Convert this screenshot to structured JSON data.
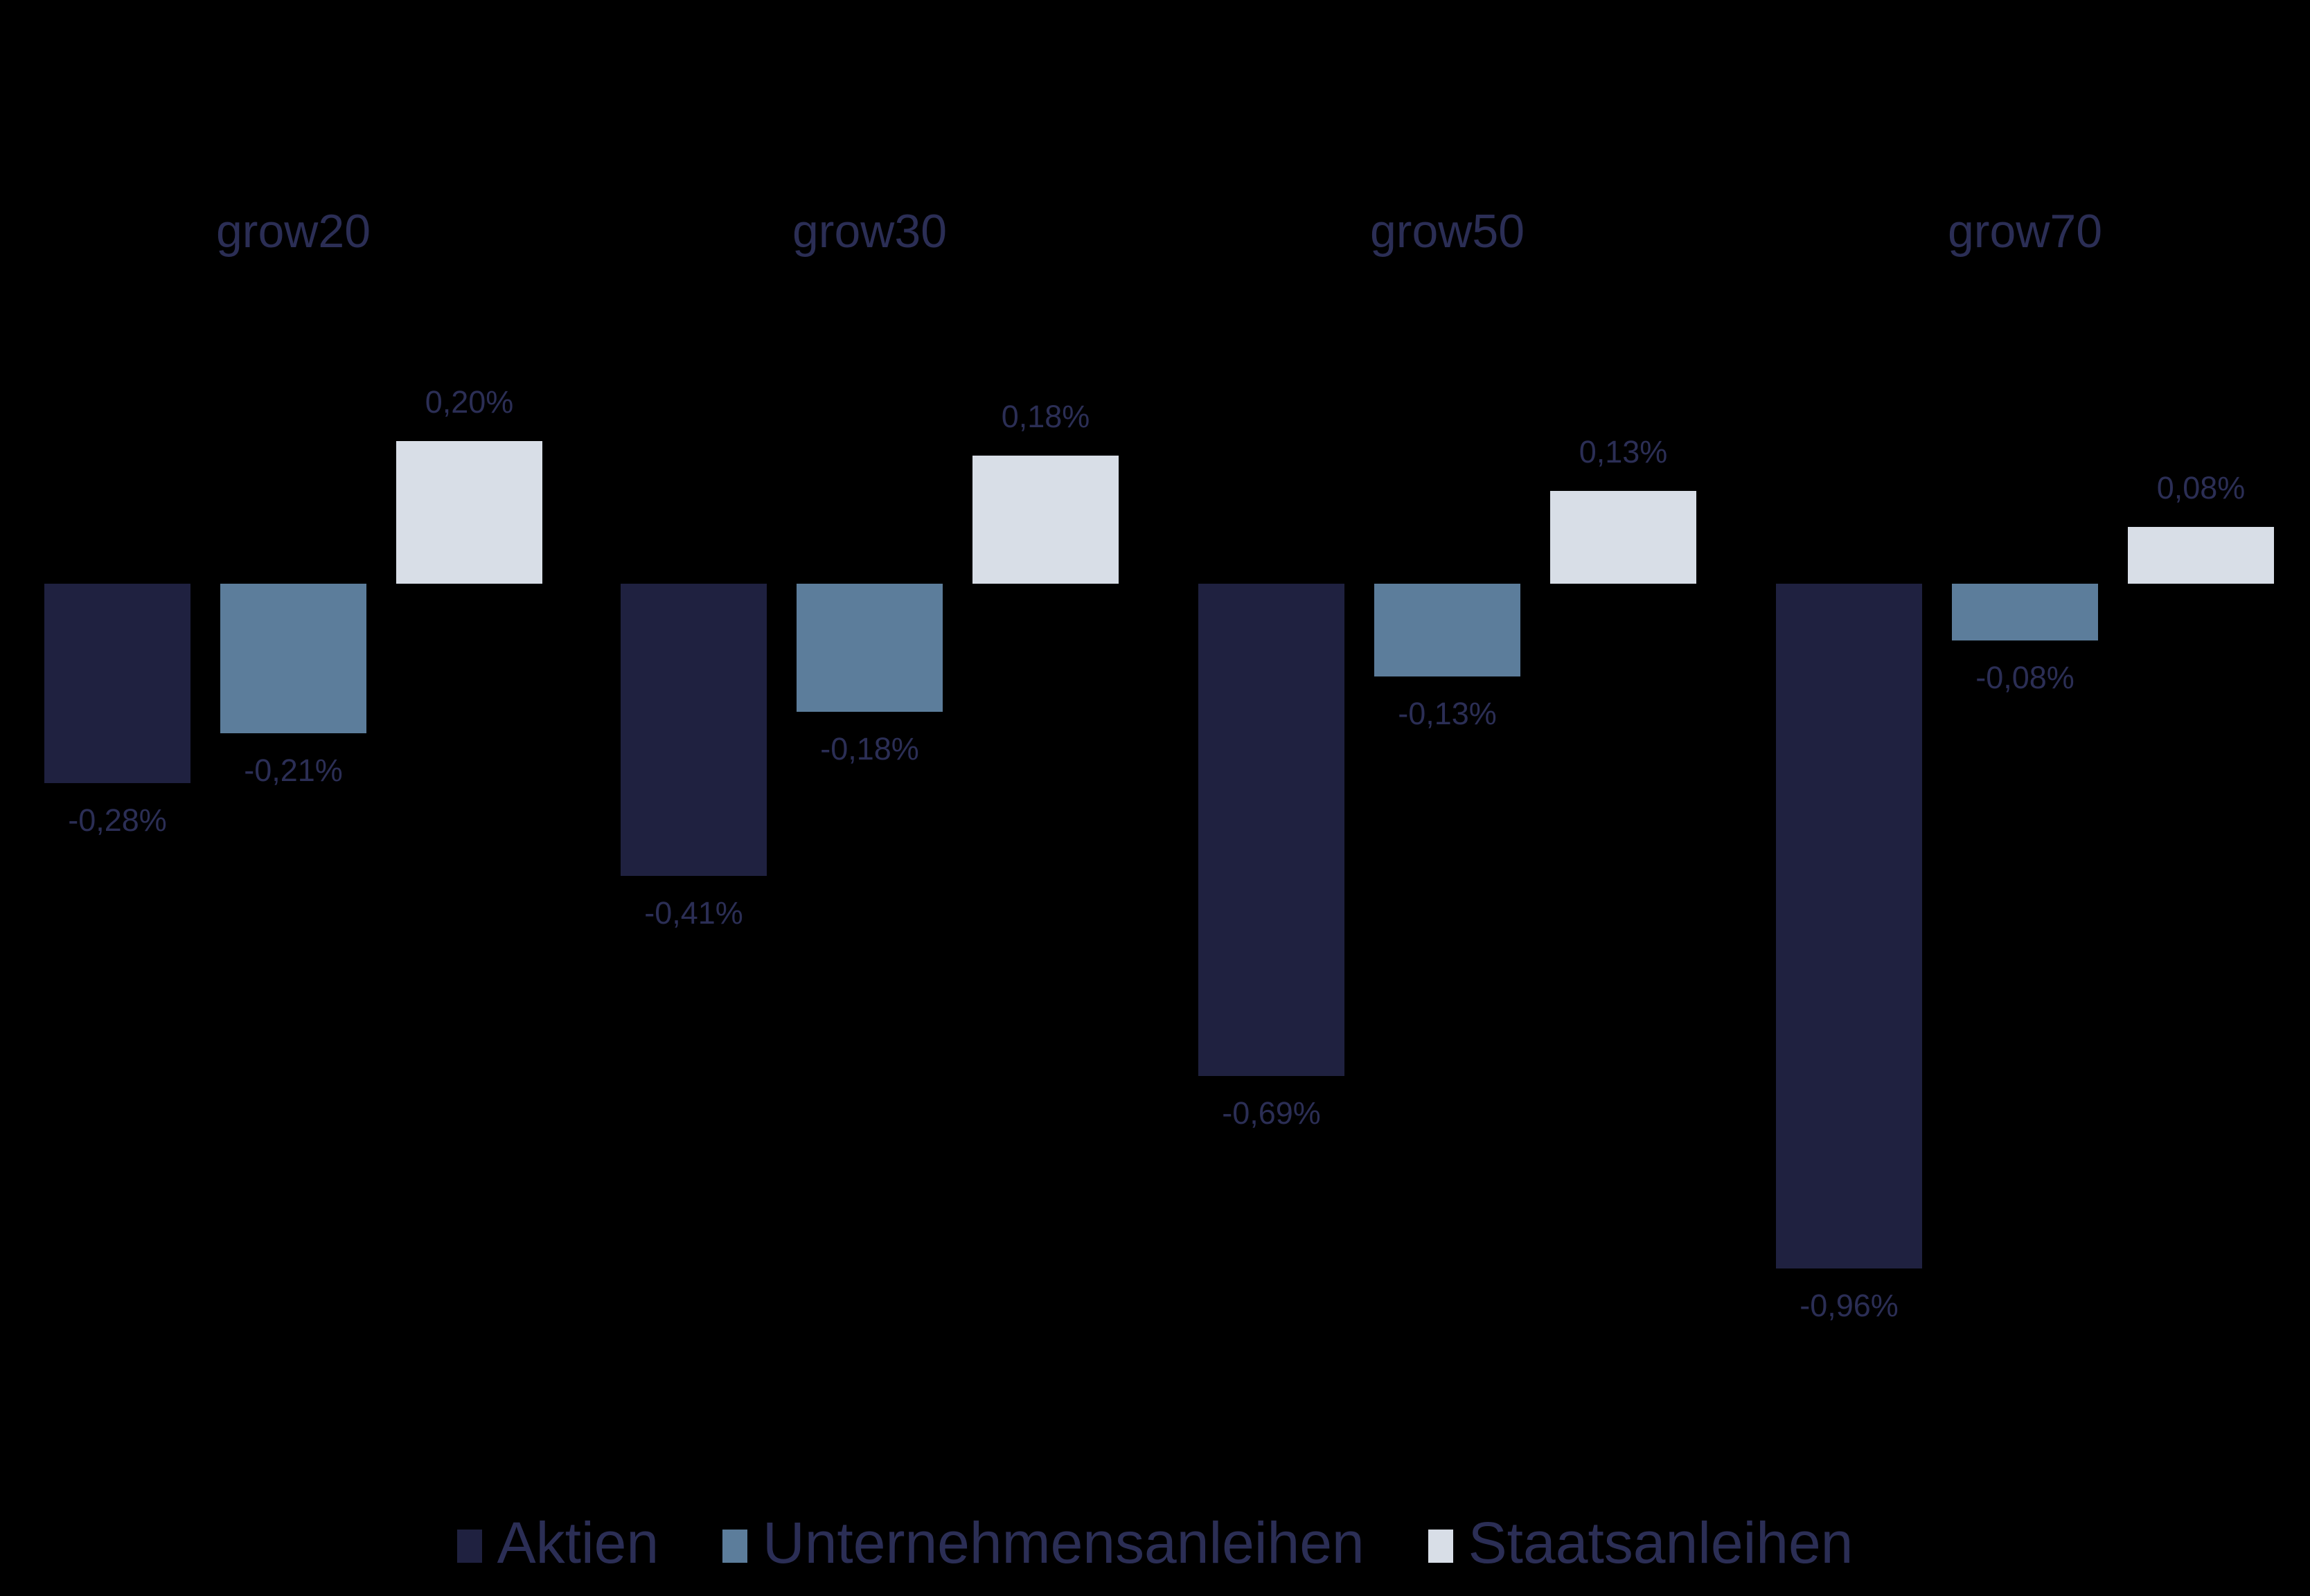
{
  "chart_data": {
    "type": "bar",
    "title": "",
    "categories": [
      "grow20",
      "grow30",
      "grow50",
      "grow70"
    ],
    "series": [
      {
        "name": "Aktien",
        "color": "#1F2140",
        "values": [
          -0.28,
          -0.41,
          -0.69,
          -0.96
        ],
        "labels": [
          "-0,28%",
          "-0,41%",
          "-0,69%",
          "-0,96%"
        ]
      },
      {
        "name": "Unternehmensanleihen",
        "color": "#5C7D9B",
        "values": [
          -0.21,
          -0.18,
          -0.13,
          -0.08
        ],
        "labels": [
          "-0,21%",
          "-0,18%",
          "-0,13%",
          "-0,08%"
        ]
      },
      {
        "name": "Staatsanleihen",
        "color": "#D8DEE7",
        "values": [
          0.2,
          0.18,
          0.13,
          0.08
        ],
        "labels": [
          "0,20%",
          "0,18%",
          "0,13%",
          "0,08%"
        ]
      }
    ],
    "value_format": "percent, German decimal comma, 2 decimals",
    "data_labels": "outside end",
    "legend_position": "bottom-center",
    "grid": false,
    "axes_visible": false,
    "background": "#000000",
    "text_color": "#2B2E55"
  }
}
